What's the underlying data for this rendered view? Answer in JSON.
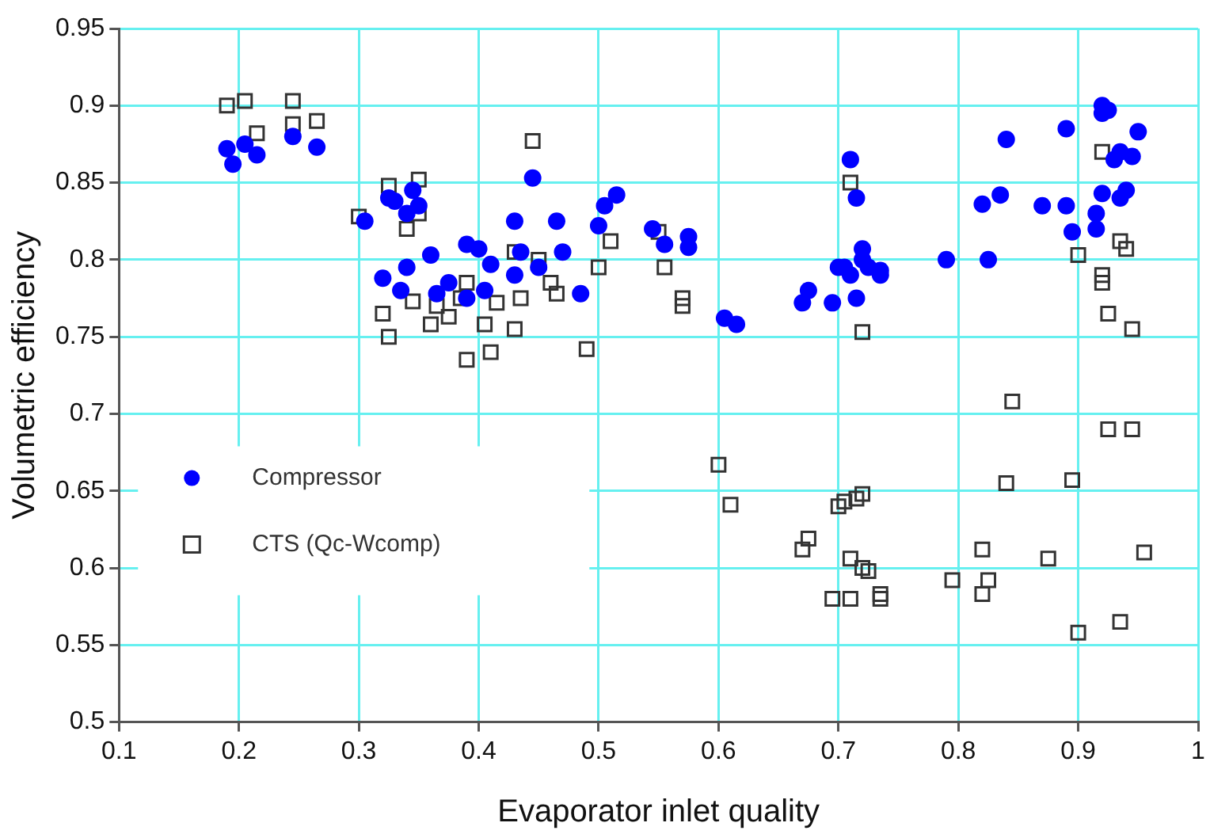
{
  "chart_data": {
    "type": "scatter",
    "xlabel": "Evaporator inlet quality",
    "ylabel": "Volumetric efficiency",
    "xlim": [
      0.1,
      1
    ],
    "xticks": [
      0.1,
      0.2,
      0.3,
      0.4,
      0.5,
      0.6,
      0.7,
      0.8,
      0.9,
      1
    ],
    "ylim": [
      0.5,
      0.95
    ],
    "yticks": [
      0.5,
      0.55,
      0.6,
      0.65,
      0.7,
      0.75,
      0.8,
      0.85,
      0.9,
      0.95
    ],
    "grid": true,
    "legend": "bottom left",
    "series": [
      {
        "name": "Compressor",
        "color": "#0000ff",
        "marker": "circle",
        "x": [
          0.19,
          0.195,
          0.205,
          0.215,
          0.245,
          0.265,
          0.305,
          0.32,
          0.325,
          0.33,
          0.335,
          0.34,
          0.345,
          0.35,
          0.34,
          0.36,
          0.365,
          0.375,
          0.39,
          0.39,
          0.4,
          0.405,
          0.41,
          0.43,
          0.43,
          0.435,
          0.445,
          0.45,
          0.465,
          0.47,
          0.485,
          0.5,
          0.505,
          0.515,
          0.545,
          0.555,
          0.575,
          0.575,
          0.605,
          0.615,
          0.67,
          0.675,
          0.695,
          0.7,
          0.705,
          0.71,
          0.715,
          0.71,
          0.72,
          0.72,
          0.725,
          0.735,
          0.735,
          0.715,
          0.79,
          0.82,
          0.825,
          0.835,
          0.84,
          0.87,
          0.89,
          0.89,
          0.895,
          0.915,
          0.915,
          0.92,
          0.92,
          0.925,
          0.93,
          0.935,
          0.935,
          0.94,
          0.945,
          0.95,
          0.92
        ],
        "values": [
          0.872,
          0.862,
          0.875,
          0.868,
          0.88,
          0.873,
          0.825,
          0.788,
          0.84,
          0.838,
          0.78,
          0.83,
          0.845,
          0.835,
          0.795,
          0.803,
          0.778,
          0.785,
          0.81,
          0.775,
          0.807,
          0.78,
          0.797,
          0.825,
          0.79,
          0.805,
          0.853,
          0.795,
          0.825,
          0.805,
          0.778,
          0.822,
          0.835,
          0.842,
          0.82,
          0.81,
          0.815,
          0.808,
          0.762,
          0.758,
          0.772,
          0.78,
          0.772,
          0.795,
          0.795,
          0.865,
          0.84,
          0.79,
          0.8,
          0.807,
          0.795,
          0.793,
          0.79,
          0.775,
          0.8,
          0.836,
          0.8,
          0.842,
          0.878,
          0.835,
          0.835,
          0.885,
          0.818,
          0.83,
          0.82,
          0.895,
          0.9,
          0.897,
          0.865,
          0.87,
          0.84,
          0.845,
          0.867,
          0.883,
          0.843
        ]
      },
      {
        "name": "CTS (Qc-Wcomp)",
        "color": "#333333",
        "marker": "square",
        "x": [
          0.19,
          0.205,
          0.215,
          0.245,
          0.245,
          0.265,
          0.3,
          0.32,
          0.325,
          0.325,
          0.34,
          0.345,
          0.35,
          0.35,
          0.36,
          0.365,
          0.375,
          0.385,
          0.39,
          0.39,
          0.405,
          0.41,
          0.415,
          0.43,
          0.435,
          0.43,
          0.445,
          0.45,
          0.46,
          0.465,
          0.49,
          0.5,
          0.51,
          0.55,
          0.555,
          0.57,
          0.57,
          0.6,
          0.61,
          0.67,
          0.675,
          0.7,
          0.705,
          0.71,
          0.71,
          0.71,
          0.715,
          0.72,
          0.72,
          0.72,
          0.725,
          0.735,
          0.735,
          0.695,
          0.795,
          0.82,
          0.82,
          0.825,
          0.84,
          0.845,
          0.875,
          0.895,
          0.9,
          0.9,
          0.92,
          0.92,
          0.92,
          0.925,
          0.925,
          0.935,
          0.935,
          0.94,
          0.945,
          0.945,
          0.955
        ],
        "values": [
          0.9,
          0.903,
          0.882,
          0.903,
          0.888,
          0.89,
          0.828,
          0.765,
          0.848,
          0.75,
          0.82,
          0.773,
          0.852,
          0.83,
          0.758,
          0.77,
          0.763,
          0.775,
          0.735,
          0.785,
          0.758,
          0.74,
          0.772,
          0.805,
          0.775,
          0.755,
          0.877,
          0.8,
          0.785,
          0.778,
          0.742,
          0.795,
          0.812,
          0.818,
          0.795,
          0.775,
          0.77,
          0.667,
          0.641,
          0.612,
          0.619,
          0.64,
          0.643,
          0.85,
          0.606,
          0.58,
          0.645,
          0.753,
          0.648,
          0.6,
          0.598,
          0.58,
          0.583,
          0.58,
          0.592,
          0.612,
          0.583,
          0.592,
          0.655,
          0.708,
          0.606,
          0.657,
          0.803,
          0.558,
          0.87,
          0.785,
          0.79,
          0.765,
          0.69,
          0.565,
          0.812,
          0.807,
          0.755,
          0.69,
          0.61
        ]
      }
    ]
  }
}
